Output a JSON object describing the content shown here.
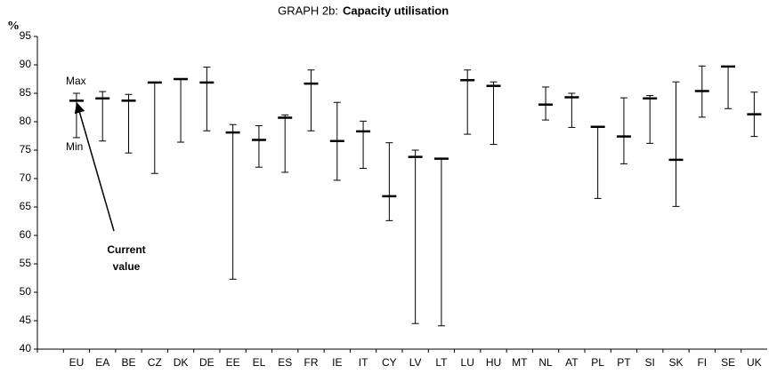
{
  "chart_data": {
    "type": "range",
    "title_prefix": "GRAPH 2b:",
    "title": "Capacity utilisation",
    "y_label": "%",
    "categories": [
      null,
      "EU",
      "EA",
      "BE",
      "CZ",
      "DK",
      "DE",
      "EE",
      "EL",
      "ES",
      "FR",
      "IE",
      "IT",
      "CY",
      "LV",
      "LT",
      "LU",
      "HU",
      "MT",
      "NL",
      "AT",
      "PL",
      "PT",
      "SI",
      "SK",
      "FI",
      "SE",
      "UK"
    ],
    "series": [
      {
        "name": "Current value",
        "color": "#000000",
        "values": [
          null,
          83.7,
          84.1,
          83.7,
          86.9,
          87.5,
          86.9,
          78.1,
          76.8,
          80.7,
          86.7,
          76.6,
          78.3,
          66.9,
          73.8,
          73.5,
          87.3,
          86.3,
          null,
          83.0,
          84.3,
          79.1,
          77.4,
          84.1,
          73.3,
          85.4,
          89.7,
          81.3
        ]
      },
      {
        "name": "Min",
        "color": "#000000",
        "values": [
          null,
          77.2,
          76.6,
          74.5,
          70.9,
          76.4,
          78.4,
          52.3,
          72.0,
          71.1,
          78.4,
          69.7,
          71.8,
          62.6,
          44.5,
          44.1,
          77.8,
          76.0,
          null,
          80.3,
          79.0,
          66.5,
          72.6,
          76.2,
          65.1,
          80.8,
          82.3,
          77.4
        ]
      },
      {
        "name": "Max",
        "color": "#000000",
        "values": [
          null,
          85.0,
          85.3,
          84.8,
          86.9,
          87.5,
          89.6,
          79.5,
          79.3,
          81.2,
          89.1,
          83.4,
          80.1,
          76.3,
          75.0,
          73.5,
          89.1,
          87.0,
          null,
          86.1,
          85.0,
          79.1,
          84.2,
          84.6,
          87.0,
          89.8,
          89.7,
          85.2
        ]
      }
    ],
    "ylim": [
      40,
      95
    ],
    "yticks": [
      40,
      45,
      50,
      55,
      60,
      65,
      70,
      75,
      80,
      85,
      90,
      95
    ],
    "grid": false
  }
}
